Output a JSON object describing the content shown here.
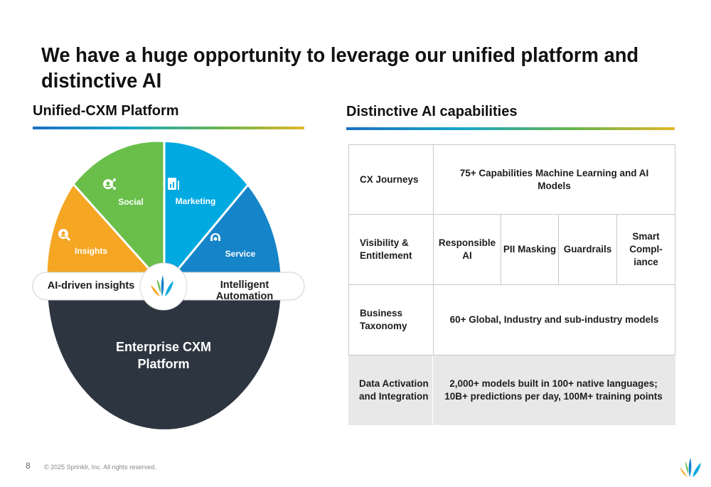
{
  "slide": {
    "title": "We have a huge opportunity to leverage our unified platform and distinctive AI",
    "left_heading": "Unified-CXM Platform",
    "right_heading": "Distinctive AI capabilities"
  },
  "diagram": {
    "segments": [
      {
        "label": "Insights",
        "color": "#f5a623",
        "icon": "magnifier-person-icon"
      },
      {
        "label": "Social",
        "color": "#6abf4b",
        "icon": "social-graph-icon"
      },
      {
        "label": "Marketing",
        "color": "#00a9e0",
        "icon": "chart-document-icon"
      },
      {
        "label": "Service",
        "color": "#1684c8",
        "icon": "headset-icon"
      }
    ],
    "pill_left": "AI-driven insights",
    "pill_right": "Intelligent Automation",
    "base_line1": "Enterprise CXM",
    "base_line2": "Platform",
    "base_color": "#2d3640"
  },
  "capabilities": {
    "rows": [
      {
        "label": "CX Journeys",
        "value": "75+ Capabilities Machine Learning and AI Models"
      },
      {
        "label": "Visibility & Entitlement",
        "items": [
          "Responsible AI",
          "PII Masking",
          "Guardrails",
          "Smart Compl-iance"
        ]
      },
      {
        "label": "Business Taxonomy",
        "value": "60+ Global, Industry and sub-industry models"
      },
      {
        "label": "Data Activation and Integration",
        "value": "2,000+ models built in 100+ native languages; 10B+ predictions per day, 100M+ training points"
      }
    ]
  },
  "footer": {
    "page_number": "8",
    "copyright": "© 2025 Sprinklr, Inc. All rights reserved."
  }
}
